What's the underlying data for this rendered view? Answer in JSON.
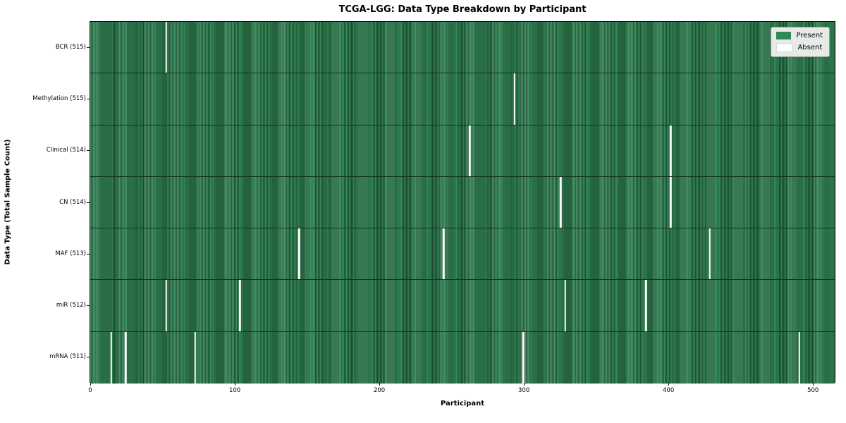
{
  "title": "TCGA-LGG: Data Type Breakdown by Participant",
  "chart_data": {
    "type": "heatmap",
    "title": "TCGA-LGG: Data Type Breakdown by Participant",
    "xlabel": "Participant",
    "ylabel": "Data Type (Total Sample Count)",
    "x_ticks": [
      0,
      100,
      200,
      300,
      400,
      500
    ],
    "x_range": [
      0,
      515
    ],
    "n_participants": 516,
    "grid": false,
    "legend_position": "upper right",
    "legend": [
      {
        "label": "Present",
        "color": "#2e8b57"
      },
      {
        "label": "Absent",
        "color": "#ffffff"
      }
    ],
    "colors": {
      "present": "#2e8b57",
      "present_stripe_dark": "#1e5133",
      "absent": "#ffffff",
      "legend_bg": "#e7ebe7"
    },
    "rows": [
      {
        "label": "BCR (515)",
        "data_type": "BCR",
        "present_count": 515,
        "absent_participants": [
          52
        ]
      },
      {
        "label": "Methylation (515)",
        "data_type": "Methylation",
        "present_count": 515,
        "absent_participants": [
          293
        ]
      },
      {
        "label": "Clinical (514)",
        "data_type": "Clinical",
        "present_count": 514,
        "absent_participants": [
          262,
          401
        ]
      },
      {
        "label": "CN (514)",
        "data_type": "CN",
        "present_count": 514,
        "absent_participants": [
          325,
          401
        ]
      },
      {
        "label": "MAF (513)",
        "data_type": "MAF",
        "present_count": 513,
        "absent_participants": [
          144,
          244,
          428
        ]
      },
      {
        "label": "miR (512)",
        "data_type": "miR",
        "present_count": 512,
        "absent_participants": [
          52,
          103,
          328,
          384
        ]
      },
      {
        "label": "mRNA (511)",
        "data_type": "mRNA",
        "present_count": 511,
        "absent_participants": [
          14,
          24,
          72,
          299,
          490
        ]
      }
    ]
  }
}
